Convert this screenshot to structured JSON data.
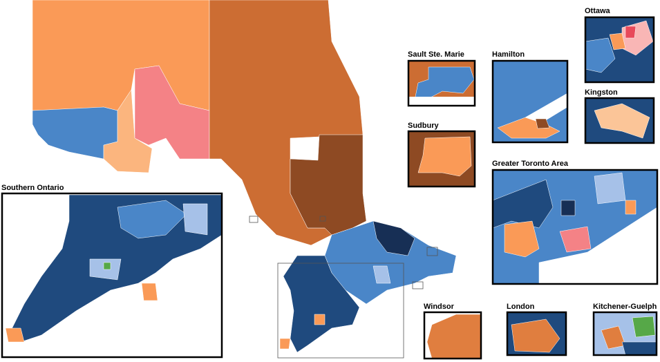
{
  "insets": [
    {
      "label": "Ottawa"
    },
    {
      "label": "Sault Ste. Marie"
    },
    {
      "label": "Hamilton"
    },
    {
      "label": "Kingston"
    },
    {
      "label": "Sudbury"
    },
    {
      "label": "Greater Toronto Area"
    },
    {
      "label": "Southern Ontario"
    },
    {
      "label": "Windsor"
    },
    {
      "label": "London"
    },
    {
      "label": "Kitchener-Guelph"
    }
  ]
}
